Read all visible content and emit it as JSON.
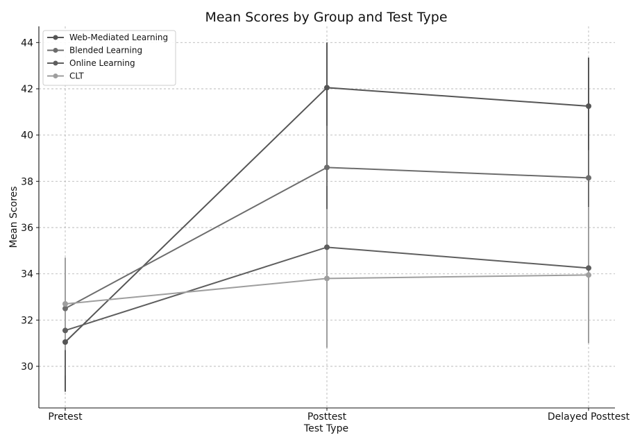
{
  "chart_data": {
    "type": "line",
    "title": "Mean Scores by Group and Test Type",
    "xlabel": "Test Type",
    "ylabel": "Mean Scores",
    "categories": [
      "Pretest",
      "Posttest",
      "Delayed Posttest"
    ],
    "ylim": [
      28.2,
      44.7
    ],
    "yticks": [
      30,
      32,
      34,
      36,
      38,
      40,
      42,
      44
    ],
    "grid": true,
    "legend_position": "top-left",
    "series": [
      {
        "name": "Web-Mediated Learning",
        "color": "#555555",
        "values": [
          31.05,
          42.05,
          41.25
        ],
        "err_low": [
          28.9,
          40.1,
          39.15
        ],
        "err_high": [
          33.2,
          44.0,
          43.35
        ]
      },
      {
        "name": "Blended Learning",
        "color": "#6c6c6c",
        "values": [
          32.5,
          38.6,
          38.15
        ],
        "err_low": [
          30.4,
          36.8,
          36.95
        ],
        "err_high": [
          34.6,
          40.4,
          39.35
        ]
      },
      {
        "name": "Online Learning",
        "color": "#5e5e5e",
        "values": [
          31.55,
          35.15,
          34.25
        ],
        "err_low": [
          29.6,
          32.5,
          31.55
        ],
        "err_high": [
          33.5,
          37.8,
          36.95
        ]
      },
      {
        "name": "CLT",
        "color": "#9e9e9e",
        "values": [
          32.7,
          33.8,
          33.95
        ],
        "err_low": [
          30.7,
          30.8,
          31.0
        ],
        "err_high": [
          34.7,
          36.8,
          36.9
        ]
      }
    ]
  }
}
